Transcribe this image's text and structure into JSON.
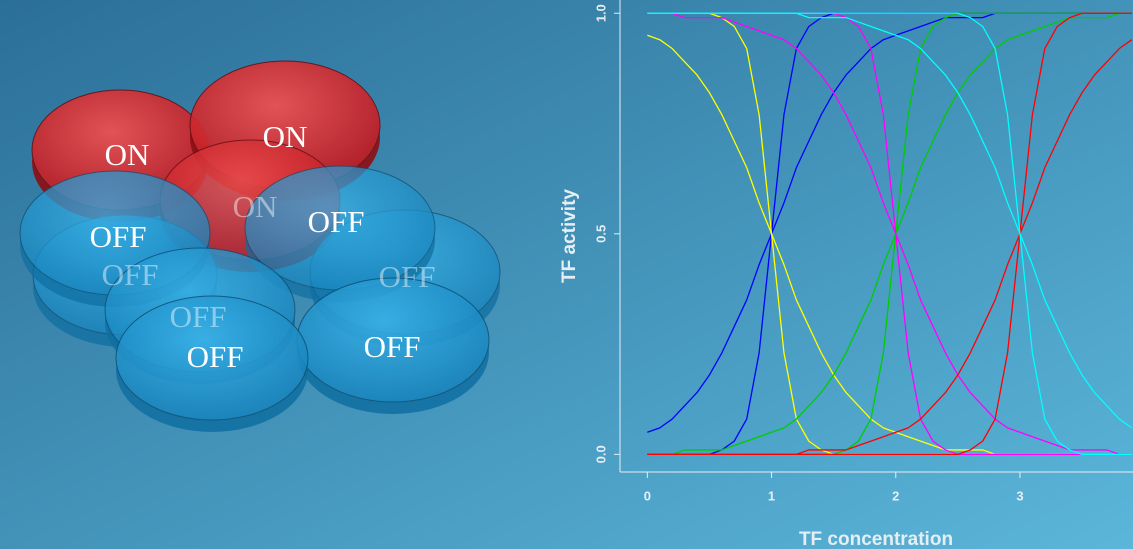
{
  "diagram": {
    "nodes": [
      {
        "label": "ON"
      },
      {
        "label": "ON"
      },
      {
        "label": "ON"
      },
      {
        "label": "OFF"
      },
      {
        "label": "OFF"
      },
      {
        "label": "OFF"
      },
      {
        "label": "OFF"
      },
      {
        "label": "OFF"
      },
      {
        "label": "OFF"
      },
      {
        "label": "OFF"
      }
    ]
  },
  "chart_data": {
    "type": "line",
    "xlabel": "TF concentration",
    "ylabel": "TF activity",
    "xlim": [
      -0.22,
      3.91
    ],
    "ylim": [
      -0.04,
      1.03
    ],
    "xticks": [
      0,
      1,
      2,
      3
    ],
    "yticks": [
      {
        "value": 0,
        "label": "0.0"
      },
      {
        "value": 0.5,
        "label": "0.5"
      },
      {
        "value": 1,
        "label": "1.0"
      }
    ],
    "x": [
      0,
      0.1,
      0.2,
      0.3,
      0.4,
      0.5,
      0.6,
      0.7,
      0.8,
      0.9,
      1,
      1.1,
      1.2,
      1.3,
      1.4,
      1.5,
      1.6,
      1.7,
      1.8,
      1.9,
      2,
      2.1,
      2.2,
      2.3,
      2.4,
      2.5,
      2.6,
      2.7,
      2.8,
      2.9,
      3,
      3.1,
      3.2,
      3.3,
      3.4,
      3.5,
      3.6,
      3.7,
      3.8,
      3.9
    ],
    "series": [
      {
        "color": "#0000ff",
        "values": [
          0,
          0,
          0,
          0,
          0,
          0,
          0.01,
          0.03,
          0.08,
          0.23,
          0.5,
          0.77,
          0.92,
          0.97,
          0.99,
          1,
          1,
          1,
          1,
          1,
          1,
          1,
          1,
          1,
          1,
          1,
          1,
          1,
          1,
          1,
          1,
          1,
          1,
          1,
          1,
          1,
          1,
          1,
          1,
          1
        ]
      },
      {
        "color": "#0000ff",
        "values": [
          0.05,
          0.06,
          0.08,
          0.11,
          0.14,
          0.18,
          0.23,
          0.29,
          0.35,
          0.43,
          0.5,
          0.57,
          0.65,
          0.71,
          0.77,
          0.82,
          0.86,
          0.89,
          0.92,
          0.94,
          0.95,
          0.96,
          0.97,
          0.98,
          0.99,
          0.99,
          0.99,
          0.99,
          1,
          1,
          1,
          1,
          1,
          1,
          1,
          1,
          1,
          1,
          1,
          1
        ]
      },
      {
        "color": "#ffff00",
        "values": [
          1,
          1,
          1,
          1,
          1,
          1,
          0.99,
          0.97,
          0.92,
          0.77,
          0.5,
          0.23,
          0.08,
          0.03,
          0.01,
          0,
          0,
          0,
          0,
          0,
          0,
          0,
          0,
          0,
          0,
          0,
          0,
          0,
          0,
          0,
          0,
          0,
          0,
          0,
          0,
          0,
          0,
          0,
          0,
          0
        ]
      },
      {
        "color": "#ffff00",
        "values": [
          0.95,
          0.94,
          0.92,
          0.89,
          0.86,
          0.82,
          0.77,
          0.71,
          0.65,
          0.57,
          0.5,
          0.43,
          0.35,
          0.29,
          0.23,
          0.18,
          0.14,
          0.11,
          0.08,
          0.06,
          0.05,
          0.04,
          0.03,
          0.02,
          0.01,
          0.01,
          0.01,
          0.01,
          0,
          0,
          0,
          0,
          0,
          0,
          0,
          0,
          0,
          0,
          0,
          0
        ]
      },
      {
        "color": "#00cc00",
        "values": [
          0,
          0,
          0,
          0,
          0,
          0,
          0,
          0,
          0,
          0,
          0,
          0,
          0,
          0,
          0,
          0,
          0.01,
          0.03,
          0.08,
          0.23,
          0.5,
          0.77,
          0.92,
          0.97,
          0.99,
          1,
          1,
          1,
          1,
          1,
          1,
          1,
          1,
          1,
          1,
          1,
          1,
          1,
          1,
          1
        ]
      },
      {
        "color": "#00cc00",
        "values": [
          0,
          0,
          0,
          0.01,
          0.01,
          0.01,
          0.01,
          0.02,
          0.03,
          0.04,
          0.05,
          0.06,
          0.08,
          0.11,
          0.14,
          0.18,
          0.23,
          0.29,
          0.35,
          0.43,
          0.5,
          0.57,
          0.65,
          0.71,
          0.77,
          0.82,
          0.86,
          0.89,
          0.92,
          0.94,
          0.95,
          0.96,
          0.97,
          0.98,
          0.99,
          0.99,
          0.99,
          0.99,
          1,
          1
        ]
      },
      {
        "color": "#ff00ff",
        "values": [
          1,
          1,
          1,
          1,
          1,
          1,
          1,
          1,
          1,
          1,
          1,
          1,
          1,
          1,
          1,
          1,
          0.99,
          0.97,
          0.92,
          0.77,
          0.5,
          0.23,
          0.08,
          0.03,
          0.01,
          0,
          0,
          0,
          0,
          0,
          0,
          0,
          0,
          0,
          0,
          0,
          0,
          0,
          0,
          0
        ]
      },
      {
        "color": "#ff00ff",
        "values": [
          1,
          1,
          1,
          0.99,
          0.99,
          0.99,
          0.99,
          0.98,
          0.97,
          0.96,
          0.95,
          0.94,
          0.92,
          0.89,
          0.86,
          0.82,
          0.77,
          0.71,
          0.65,
          0.57,
          0.5,
          0.43,
          0.35,
          0.29,
          0.23,
          0.18,
          0.14,
          0.11,
          0.08,
          0.06,
          0.05,
          0.04,
          0.03,
          0.02,
          0.01,
          0.01,
          0.01,
          0.01,
          0,
          0
        ]
      },
      {
        "color": "#ff0000",
        "values": [
          0,
          0,
          0,
          0,
          0,
          0,
          0,
          0,
          0,
          0,
          0,
          0,
          0,
          0,
          0,
          0,
          0,
          0,
          0,
          0,
          0,
          0,
          0,
          0,
          0,
          0,
          0.01,
          0.03,
          0.08,
          0.23,
          0.5,
          0.77,
          0.92,
          0.97,
          0.99,
          1,
          1,
          1,
          1,
          1
        ]
      },
      {
        "color": "#ff0000",
        "values": [
          0,
          0,
          0,
          0,
          0,
          0,
          0,
          0,
          0,
          0,
          0,
          0,
          0,
          0.01,
          0.01,
          0.01,
          0.01,
          0.02,
          0.03,
          0.04,
          0.05,
          0.06,
          0.08,
          0.11,
          0.14,
          0.18,
          0.23,
          0.29,
          0.35,
          0.43,
          0.5,
          0.57,
          0.65,
          0.71,
          0.77,
          0.82,
          0.86,
          0.89,
          0.92,
          0.94
        ]
      },
      {
        "color": "#00ffff",
        "values": [
          1,
          1,
          1,
          1,
          1,
          1,
          1,
          1,
          1,
          1,
          1,
          1,
          1,
          1,
          1,
          1,
          1,
          1,
          1,
          1,
          1,
          1,
          1,
          1,
          1,
          1,
          0.99,
          0.97,
          0.92,
          0.77,
          0.5,
          0.23,
          0.08,
          0.03,
          0.01,
          0,
          0,
          0,
          0,
          0
        ]
      },
      {
        "color": "#00ffff",
        "values": [
          1,
          1,
          1,
          1,
          1,
          1,
          1,
          1,
          1,
          1,
          1,
          1,
          1,
          0.99,
          0.99,
          0.99,
          0.99,
          0.98,
          0.97,
          0.96,
          0.95,
          0.94,
          0.92,
          0.89,
          0.86,
          0.82,
          0.77,
          0.71,
          0.65,
          0.57,
          0.5,
          0.43,
          0.35,
          0.29,
          0.23,
          0.18,
          0.14,
          0.11,
          0.08,
          0.06
        ]
      }
    ]
  }
}
